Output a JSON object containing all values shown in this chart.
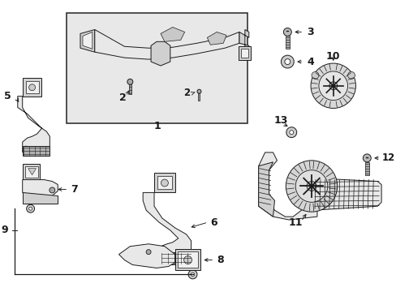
{
  "bg_color": "#ffffff",
  "line_color": "#1a1a1a",
  "part_fill": "#e8e8e8",
  "part_fill2": "#d0d0d0",
  "hatch_fill": "#b0b0b0",
  "box_bg": "#e8e8e8",
  "box_border": "#333333"
}
